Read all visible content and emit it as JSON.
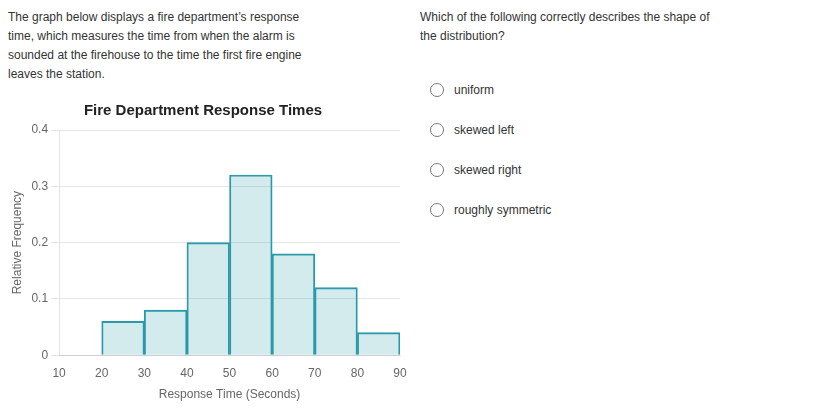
{
  "chart_data": {
    "type": "histogram",
    "title": "Fire Department Response Times",
    "xlabel": "Response Time (Seconds)",
    "ylabel": "Relative Frequency",
    "bins": [
      10,
      20,
      30,
      40,
      50,
      60,
      70,
      80,
      90
    ],
    "values": [
      0.0,
      0.06,
      0.08,
      0.2,
      0.32,
      0.18,
      0.12,
      0.04
    ],
    "color": "#2a9aab",
    "xlim": [
      10,
      90
    ],
    "xticks": [
      10,
      20,
      30,
      40,
      50,
      60,
      70,
      80,
      90
    ],
    "ylim": [
      0,
      0.4
    ],
    "yticks": [
      0,
      0.1,
      0.2,
      0.3,
      0.4
    ],
    "grid": "y",
    "annotations": {
      "text": [
        "The graph below displays a fire department’s response",
        "time, which measures the time from when the alarm is",
        "sounded at the firehouse to the time the first fire engine",
        "leaves the station."
      ],
      "question": [
        "Which of the following correctly describes the shape of",
        "the distribution?"
      ],
      "options": [
        "uniform",
        "skewed left",
        "skewed right",
        "roughly symmetric"
      ]
    }
  }
}
